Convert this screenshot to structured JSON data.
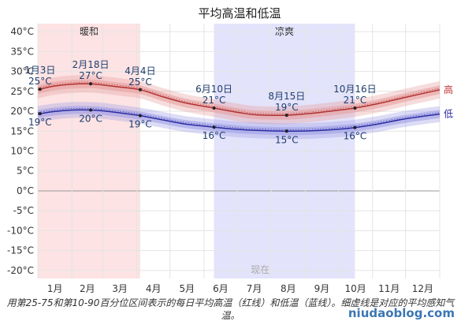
{
  "chart_data": {
    "type": "line",
    "title": "平均高温和低温",
    "xlabel": "",
    "ylabel": "",
    "ylim": [
      -22,
      42
    ],
    "y_ticks": [
      -20,
      -15,
      -10,
      -5,
      0,
      5,
      10,
      15,
      20,
      25,
      30,
      35,
      40
    ],
    "y_tick_labels": [
      "-20°C",
      "-15°C",
      "-10°C",
      "-5°C",
      "0°C",
      "5°C",
      "10°C",
      "15°C",
      "20°C",
      "25°C",
      "30°C",
      "35°C",
      "40°C"
    ],
    "x_range": [
      1,
      366
    ],
    "month_labels": [
      "1月",
      "2月",
      "3月",
      "4月",
      "5月",
      "6月",
      "7月",
      "8月",
      "9月",
      "10月",
      "11月",
      "12月"
    ],
    "grid": true,
    "seasons": [
      {
        "name": "暖和",
        "start_day": 1,
        "end_day": 94,
        "color": "#fde3e3"
      },
      {
        "name": "凉爽",
        "start_day": 161,
        "end_day": 289,
        "color": "#e3e3fb"
      }
    ],
    "now_label": "现在",
    "series": [
      {
        "name": "高",
        "color": "#b03030",
        "band_color": "#e69a9a",
        "x": [
          1,
          15,
          32,
          49,
          60,
          75,
          94,
          115,
          135,
          161,
          185,
          200,
          227,
          250,
          275,
          289,
          310,
          335,
          366
        ],
        "values": [
          25.4,
          26.3,
          26.8,
          26.9,
          26.6,
          26.1,
          25.4,
          23.6,
          22.1,
          20.8,
          19.6,
          19.1,
          19.0,
          19.5,
          20.3,
          20.8,
          21.9,
          23.5,
          25.4
        ],
        "p25_75": [
          1.1,
          1.1,
          1.1,
          1.1,
          1.1,
          1.1,
          1.1,
          1.1,
          1.1,
          1.1,
          1.1,
          1.1,
          1.1,
          1.1,
          1.1,
          1.1,
          1.1,
          1.1,
          1.1
        ],
        "p10_90": [
          2.2,
          2.2,
          2.2,
          2.2,
          2.2,
          2.2,
          2.2,
          2.2,
          2.2,
          2.2,
          2.2,
          2.2,
          2.2,
          2.2,
          2.2,
          2.2,
          2.2,
          2.2,
          2.2
        ]
      },
      {
        "name": "低",
        "color": "#2a2aa0",
        "band_color": "#9a9ae6",
        "x": [
          1,
          15,
          32,
          49,
          60,
          75,
          94,
          115,
          135,
          161,
          185,
          200,
          227,
          250,
          275,
          289,
          310,
          335,
          366
        ],
        "values": [
          19.3,
          19.9,
          20.3,
          20.3,
          20.1,
          19.6,
          18.9,
          17.8,
          16.8,
          16.0,
          15.4,
          15.2,
          15.0,
          15.1,
          15.5,
          15.9,
          16.8,
          18.1,
          19.3
        ],
        "p25_75": [
          1.0,
          1.0,
          1.0,
          1.0,
          1.0,
          1.0,
          1.0,
          1.0,
          1.0,
          1.0,
          1.0,
          1.0,
          1.0,
          1.0,
          1.0,
          1.0,
          1.0,
          1.0,
          1.0
        ],
        "p10_90": [
          2.0,
          2.0,
          2.0,
          2.0,
          2.0,
          2.0,
          2.0,
          2.0,
          2.0,
          2.0,
          2.0,
          2.0,
          2.0,
          2.0,
          2.0,
          2.0,
          2.0,
          2.0,
          2.0
        ]
      }
    ],
    "annotations": [
      {
        "date": "1月3日",
        "day": 3,
        "high": 25,
        "low": 19
      },
      {
        "date": "2月18日",
        "day": 49,
        "high": 27,
        "low": 20
      },
      {
        "date": "4月4日",
        "day": 94,
        "high": 25,
        "low": 19
      },
      {
        "date": "6月10日",
        "day": 161,
        "high": 21,
        "low": 16
      },
      {
        "date": "8月15日",
        "day": 227,
        "high": 19,
        "low": 15
      },
      {
        "date": "10月16日",
        "day": 289,
        "high": 21,
        "low": 16
      }
    ]
  },
  "caption": "用第25-75和第10-90百分位区间表示的每日平均高温（红线）和低温（蓝线）。细虚线是对应的平均感知气温。",
  "watermark": "niudaoblog.com"
}
